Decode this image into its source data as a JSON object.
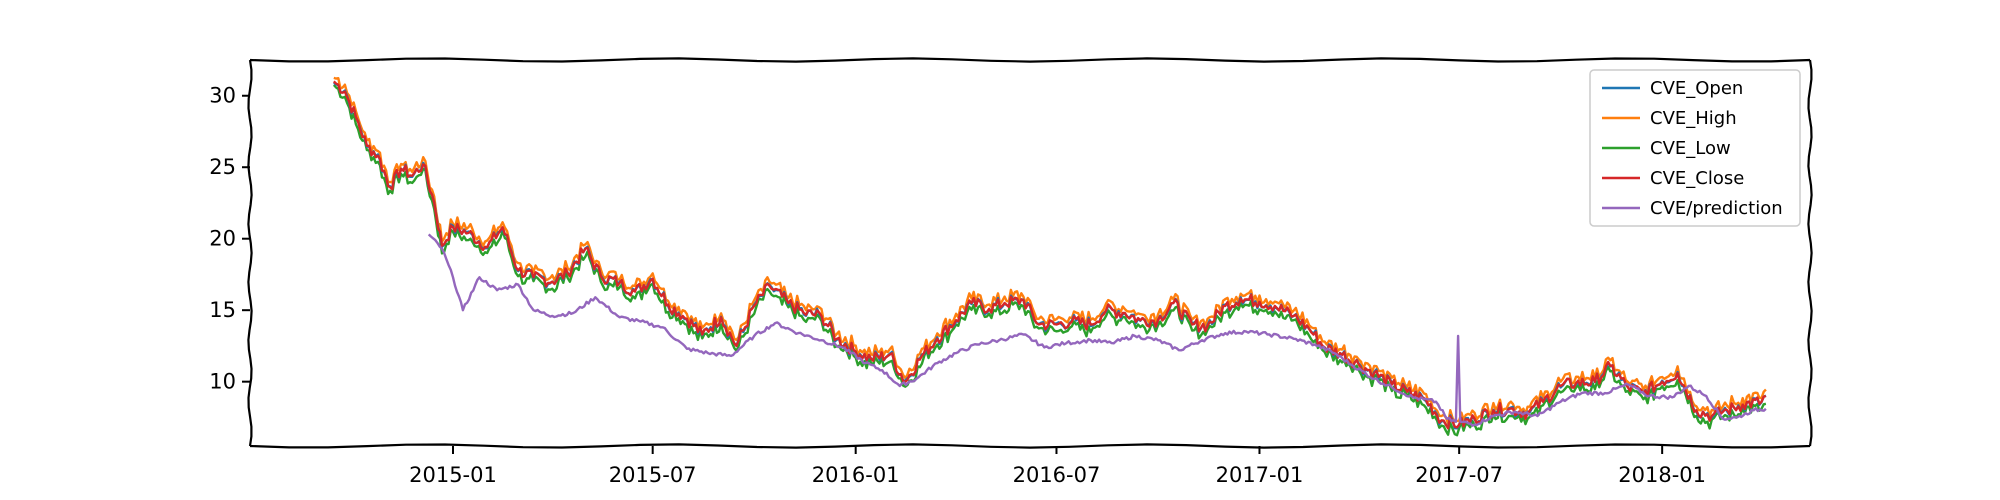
{
  "chart_data": {
    "type": "line",
    "title": "",
    "xlabel": "",
    "ylabel": "",
    "x_ticks": [
      "2015-01",
      "2015-07",
      "2016-01",
      "2016-07",
      "2017-01",
      "2017-07",
      "2018-01"
    ],
    "y_ticks": [
      10,
      15,
      20,
      25,
      30
    ],
    "xlim": [
      "2014-07-01",
      "2018-05-15"
    ],
    "ylim": [
      5.5,
      32.5
    ],
    "grid": false,
    "legend_position": "top-right",
    "series": [
      {
        "name": "CVE_Open",
        "color": "#1f77b4"
      },
      {
        "name": "CVE_High",
        "color": "#ff7f0e"
      },
      {
        "name": "CVE_Low",
        "color": "#2ca02c"
      },
      {
        "name": "CVE_Close",
        "color": "#d62728"
      },
      {
        "name": "CVE/prediction",
        "color": "#9467bd"
      }
    ],
    "close_points": [
      [
        "2014-09-15",
        31.0
      ],
      [
        "2014-09-25",
        30.3
      ],
      [
        "2014-10-05",
        28.5
      ],
      [
        "2014-10-15",
        26.5
      ],
      [
        "2014-10-25",
        25.8
      ],
      [
        "2014-11-05",
        23.6
      ],
      [
        "2014-11-15",
        24.9
      ],
      [
        "2014-11-25",
        24.4
      ],
      [
        "2014-12-05",
        25.2
      ],
      [
        "2014-12-15",
        22.5
      ],
      [
        "2014-12-22",
        19.5
      ],
      [
        "2015-01-01",
        20.8
      ],
      [
        "2015-01-15",
        20.4
      ],
      [
        "2015-02-01",
        19.4
      ],
      [
        "2015-02-15",
        20.8
      ],
      [
        "2015-03-01",
        17.8
      ],
      [
        "2015-03-15",
        17.3
      ],
      [
        "2015-04-01",
        17.0
      ],
      [
        "2015-04-15",
        17.6
      ],
      [
        "2015-05-01",
        19.3
      ],
      [
        "2015-05-15",
        17.4
      ],
      [
        "2015-06-01",
        16.9
      ],
      [
        "2015-06-15",
        16.3
      ],
      [
        "2015-07-01",
        17.2
      ],
      [
        "2015-07-15",
        15.4
      ],
      [
        "2015-08-01",
        14.4
      ],
      [
        "2015-08-15",
        13.3
      ],
      [
        "2015-09-01",
        14.5
      ],
      [
        "2015-09-15",
        12.5
      ],
      [
        "2015-10-01",
        15.3
      ],
      [
        "2015-10-15",
        16.7
      ],
      [
        "2015-11-01",
        15.5
      ],
      [
        "2015-11-15",
        14.8
      ],
      [
        "2015-12-01",
        14.6
      ],
      [
        "2015-12-15",
        13.0
      ],
      [
        "2016-01-01",
        12.1
      ],
      [
        "2016-01-15",
        11.6
      ],
      [
        "2016-02-01",
        11.9
      ],
      [
        "2016-02-15",
        10.0
      ],
      [
        "2016-03-01",
        11.8
      ],
      [
        "2016-03-15",
        13.0
      ],
      [
        "2016-04-01",
        14.3
      ],
      [
        "2016-04-15",
        15.5
      ],
      [
        "2016-05-01",
        15.1
      ],
      [
        "2016-05-15",
        15.5
      ],
      [
        "2016-06-01",
        15.7
      ],
      [
        "2016-06-15",
        14.0
      ],
      [
        "2016-07-01",
        14.0
      ],
      [
        "2016-07-15",
        14.2
      ],
      [
        "2016-08-01",
        14.0
      ],
      [
        "2016-08-15",
        15.0
      ],
      [
        "2016-09-01",
        14.8
      ],
      [
        "2016-09-15",
        14.3
      ],
      [
        "2016-10-01",
        14.3
      ],
      [
        "2016-10-15",
        15.5
      ],
      [
        "2016-11-01",
        14.0
      ],
      [
        "2016-11-15",
        13.9
      ],
      [
        "2016-12-01",
        15.3
      ],
      [
        "2016-12-15",
        15.8
      ],
      [
        "2017-01-01",
        15.6
      ],
      [
        "2017-01-15",
        15.3
      ],
      [
        "2017-02-01",
        14.6
      ],
      [
        "2017-02-15",
        13.7
      ],
      [
        "2017-03-01",
        12.4
      ],
      [
        "2017-03-15",
        12.0
      ],
      [
        "2017-04-01",
        11.2
      ],
      [
        "2017-04-15",
        10.6
      ],
      [
        "2017-05-01",
        9.8
      ],
      [
        "2017-05-15",
        9.3
      ],
      [
        "2017-06-01",
        8.7
      ],
      [
        "2017-06-15",
        7.3
      ],
      [
        "2017-07-01",
        7.0
      ],
      [
        "2017-07-15",
        7.4
      ],
      [
        "2017-08-01",
        8.0
      ],
      [
        "2017-08-15",
        8.1
      ],
      [
        "2017-09-01",
        7.8
      ],
      [
        "2017-09-15",
        8.6
      ],
      [
        "2017-10-01",
        9.7
      ],
      [
        "2017-10-15",
        9.9
      ],
      [
        "2017-11-01",
        10.0
      ],
      [
        "2017-11-15",
        11.1
      ],
      [
        "2017-12-01",
        9.6
      ],
      [
        "2017-12-15",
        9.2
      ],
      [
        "2018-01-01",
        10.0
      ],
      [
        "2018-01-15",
        10.6
      ],
      [
        "2018-02-01",
        8.0
      ],
      [
        "2018-02-15",
        7.6
      ],
      [
        "2018-03-01",
        8.0
      ],
      [
        "2018-03-15",
        8.4
      ],
      [
        "2018-04-01",
        8.6
      ],
      [
        "2018-04-05",
        9.0
      ]
    ],
    "prediction_points": [
      [
        "2014-12-10",
        20.3
      ],
      [
        "2014-12-22",
        19.3
      ],
      [
        "2015-01-01",
        17.3
      ],
      [
        "2015-01-10",
        15.0
      ],
      [
        "2015-01-25",
        17.3
      ],
      [
        "2015-02-10",
        16.4
      ],
      [
        "2015-03-01",
        16.8
      ],
      [
        "2015-03-15",
        15.0
      ],
      [
        "2015-04-01",
        14.6
      ],
      [
        "2015-04-20",
        14.8
      ],
      [
        "2015-05-10",
        15.9
      ],
      [
        "2015-06-01",
        14.5
      ],
      [
        "2015-06-20",
        14.2
      ],
      [
        "2015-07-10",
        13.8
      ],
      [
        "2015-08-01",
        12.3
      ],
      [
        "2015-08-20",
        12.0
      ],
      [
        "2015-09-10",
        11.8
      ],
      [
        "2015-10-01",
        13.2
      ],
      [
        "2015-10-20",
        14.1
      ],
      [
        "2015-11-10",
        13.4
      ],
      [
        "2015-12-01",
        12.9
      ],
      [
        "2015-12-20",
        12.4
      ],
      [
        "2016-01-10",
        11.3
      ],
      [
        "2016-01-25",
        10.8
      ],
      [
        "2016-02-10",
        9.7
      ],
      [
        "2016-02-25",
        10.2
      ],
      [
        "2016-03-15",
        11.3
      ],
      [
        "2016-04-01",
        12.0
      ],
      [
        "2016-04-20",
        12.6
      ],
      [
        "2016-05-10",
        12.9
      ],
      [
        "2016-06-01",
        13.3
      ],
      [
        "2016-06-20",
        12.4
      ],
      [
        "2016-07-10",
        12.7
      ],
      [
        "2016-08-01",
        12.9
      ],
      [
        "2016-08-20",
        12.7
      ],
      [
        "2016-09-10",
        13.2
      ],
      [
        "2016-10-01",
        12.9
      ],
      [
        "2016-10-20",
        12.2
      ],
      [
        "2016-11-10",
        12.9
      ],
      [
        "2016-12-01",
        13.4
      ],
      [
        "2016-12-20",
        13.5
      ],
      [
        "2017-01-10",
        13.3
      ],
      [
        "2017-02-01",
        13.0
      ],
      [
        "2017-02-20",
        12.6
      ],
      [
        "2017-03-10",
        12.0
      ],
      [
        "2017-03-25",
        11.2
      ],
      [
        "2017-04-15",
        10.2
      ],
      [
        "2017-05-01",
        9.6
      ],
      [
        "2017-05-20",
        8.9
      ],
      [
        "2017-06-10",
        8.6
      ],
      [
        "2017-06-20",
        7.4
      ],
      [
        "2017-06-28",
        7.2
      ],
      [
        "2017-06-30",
        13.2
      ],
      [
        "2017-07-02",
        7.2
      ],
      [
        "2017-07-15",
        7.0
      ],
      [
        "2017-08-01",
        7.6
      ],
      [
        "2017-08-20",
        7.9
      ],
      [
        "2017-09-10",
        7.6
      ],
      [
        "2017-10-01",
        8.6
      ],
      [
        "2017-10-20",
        9.2
      ],
      [
        "2017-11-10",
        9.2
      ],
      [
        "2017-12-01",
        9.8
      ],
      [
        "2017-12-20",
        9.0
      ],
      [
        "2018-01-10",
        8.9
      ],
      [
        "2018-01-25",
        9.7
      ],
      [
        "2018-02-10",
        9.0
      ],
      [
        "2018-02-25",
        7.4
      ],
      [
        "2018-03-10",
        7.5
      ],
      [
        "2018-03-25",
        8.0
      ],
      [
        "2018-04-05",
        8.1
      ]
    ]
  }
}
